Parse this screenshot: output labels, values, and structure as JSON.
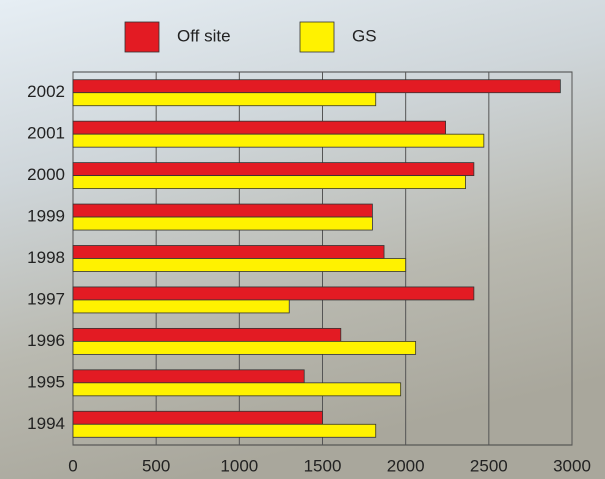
{
  "chart_data": {
    "type": "hbar",
    "categories": [
      "2002",
      "2001",
      "2000",
      "1999",
      "1998",
      "1997",
      "1996",
      "1995",
      "1994"
    ],
    "series": [
      {
        "name": "Off site",
        "color": "#e31b23",
        "values": [
          2930,
          2240,
          2410,
          1800,
          1870,
          2410,
          1610,
          1390,
          1500
        ]
      },
      {
        "name": "GS",
        "color": "#fff200",
        "values": [
          1820,
          2470,
          2360,
          1800,
          2000,
          1300,
          2060,
          1970,
          1820
        ]
      }
    ],
    "xlim": [
      0,
      3000
    ],
    "xticks": [
      0,
      500,
      1000,
      1500,
      2000,
      2500,
      3000
    ],
    "grid": true
  }
}
